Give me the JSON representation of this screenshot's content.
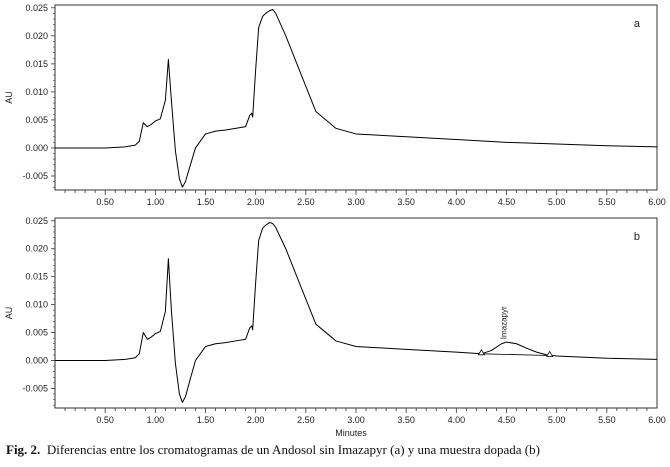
{
  "chart_data": [
    {
      "type": "line",
      "panel_label": "a",
      "ylabel": "AU",
      "xlabel": "",
      "xlim": [
        0.0,
        6.0
      ],
      "ylim": [
        -0.0075,
        0.0255
      ],
      "x_ticks": [
        "0.50",
        "1.00",
        "1.50",
        "2.00",
        "2.50",
        "3.00",
        "3.50",
        "4.00",
        "4.50",
        "5.00",
        "5.50",
        "6.00"
      ],
      "y_ticks": [
        "-0.005",
        "0.000",
        "0.005",
        "0.010",
        "0.015",
        "0.020",
        "0.025"
      ],
      "series": [
        {
          "x": [
            0.0,
            0.5,
            0.7,
            0.8,
            0.84,
            0.88,
            0.92,
            0.96,
            1.0,
            1.05,
            1.1,
            1.13,
            1.16,
            1.2,
            1.24,
            1.27,
            1.3,
            1.35,
            1.4,
            1.5,
            1.6,
            1.7,
            1.8,
            1.9,
            1.94,
            1.96,
            1.97,
            2.0,
            2.03,
            2.07,
            2.1,
            2.14,
            2.17,
            2.2,
            2.3,
            2.4,
            2.5,
            2.6,
            2.8,
            3.0,
            3.5,
            4.0,
            4.5,
            5.0,
            5.5,
            6.0
          ],
          "y": [
            0.0,
            0.0,
            0.0002,
            0.0005,
            0.0012,
            0.0045,
            0.0038,
            0.0042,
            0.0048,
            0.0052,
            0.0085,
            0.0158,
            0.0085,
            -0.0005,
            -0.0055,
            -0.007,
            -0.006,
            -0.003,
            0.0,
            0.0025,
            0.003,
            0.0032,
            0.0035,
            0.0038,
            0.0058,
            0.0062,
            0.0055,
            0.014,
            0.0215,
            0.0235,
            0.024,
            0.0245,
            0.0247,
            0.024,
            0.02,
            0.0155,
            0.011,
            0.0065,
            0.0035,
            0.0025,
            0.002,
            0.0015,
            0.001,
            0.0007,
            0.0004,
            0.0002
          ]
        }
      ]
    },
    {
      "type": "line",
      "panel_label": "b",
      "ylabel": "AU",
      "xlabel": "Minutes",
      "xlim": [
        0.0,
        6.0
      ],
      "ylim": [
        -0.0085,
        0.0255
      ],
      "x_ticks": [
        "0.50",
        "1.00",
        "1.50",
        "2.00",
        "2.50",
        "3.00",
        "3.50",
        "4.00",
        "4.50",
        "5.00",
        "5.50",
        "6.00"
      ],
      "y_ticks": [
        "-0.005",
        "0.000",
        "0.005",
        "0.010",
        "0.015",
        "0.020",
        "0.025"
      ],
      "annotation": "Imazapyr",
      "series": [
        {
          "x": [
            0.0,
            0.5,
            0.7,
            0.8,
            0.84,
            0.88,
            0.92,
            0.96,
            1.0,
            1.05,
            1.1,
            1.13,
            1.16,
            1.2,
            1.24,
            1.27,
            1.3,
            1.35,
            1.4,
            1.5,
            1.6,
            1.7,
            1.8,
            1.9,
            1.94,
            1.96,
            1.97,
            2.0,
            2.03,
            2.07,
            2.1,
            2.14,
            2.17,
            2.2,
            2.3,
            2.4,
            2.5,
            2.6,
            2.8,
            3.0,
            3.5,
            4.0,
            4.25,
            4.35,
            4.45,
            4.5,
            4.6,
            4.7,
            4.8,
            4.9,
            5.0,
            5.5,
            6.0
          ],
          "y": [
            0.0,
            0.0,
            0.0002,
            0.0005,
            0.0012,
            0.005,
            0.0038,
            0.0042,
            0.0048,
            0.0052,
            0.0088,
            0.0182,
            0.009,
            -0.0005,
            -0.006,
            -0.0075,
            -0.0065,
            -0.0032,
            0.0,
            0.0025,
            0.003,
            0.0032,
            0.0035,
            0.0038,
            0.0058,
            0.0062,
            0.0055,
            0.014,
            0.0215,
            0.0237,
            0.0242,
            0.0247,
            0.0245,
            0.0238,
            0.02,
            0.0155,
            0.011,
            0.0065,
            0.0035,
            0.0025,
            0.002,
            0.0015,
            0.0012,
            0.0018,
            0.003,
            0.0033,
            0.003,
            0.0022,
            0.0015,
            0.001,
            0.0008,
            0.0004,
            0.0002
          ]
        }
      ]
    }
  ],
  "caption": {
    "label": "Fig. 2.",
    "text": "Diferencias entre los cromatogramas de un Andosol sin Imazapyr (a) y una muestra dopada (b)"
  }
}
